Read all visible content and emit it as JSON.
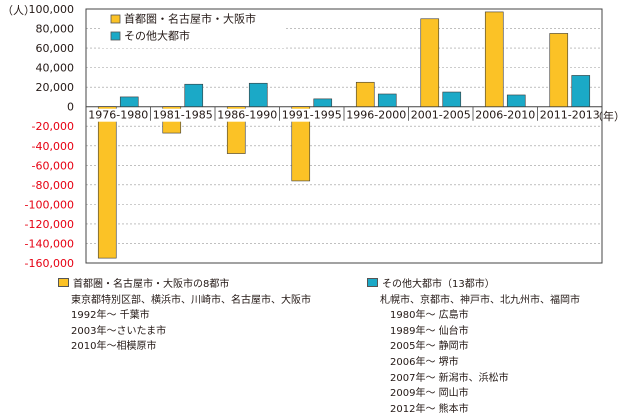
{
  "chart_data": {
    "type": "bar",
    "ylabel": "（人）",
    "xlabel": "（年）",
    "ylim": [
      -160000,
      100000
    ],
    "ytick_step": 20000,
    "yticks": [
      "100,000",
      "80,000",
      "60,000",
      "40,000",
      "20,000",
      "0",
      "-20,000",
      "-40,000",
      "-60,000",
      "-80,000",
      "-100,000",
      "-120,000",
      "-140,000",
      "-160,000"
    ],
    "grid": true,
    "legend_position": "top-left",
    "categories": [
      "1976-1980",
      "1981-1985",
      "1986-1990",
      "1991-1995",
      "1996-2000",
      "2001-2005",
      "2006-2010",
      "2011-2013"
    ],
    "series": [
      {
        "name": "首都圏・名古屋市・大阪市",
        "color": "#fbc226",
        "values": [
          -155000,
          -27000,
          -48000,
          -76000,
          25000,
          90000,
          97000,
          75000
        ]
      },
      {
        "name": "その他大都市",
        "color": "#1ba9c7",
        "values": [
          10000,
          23000,
          24000,
          8000,
          13000,
          15000,
          12000,
          32000
        ]
      }
    ],
    "negative_tick_color": "#e60012"
  },
  "notes": {
    "left_title": "首都圏・名古屋市・大阪市の8都市",
    "left_lines": [
      "東京都特別区部、横浜市、川崎市、名古屋市、大阪市",
      "1992年～ 千葉市",
      "2003年～さいたま市",
      "2010年～相模原市"
    ],
    "right_title": "その他大都市（13都市）",
    "right_lines": [
      "札幌市、京都市、神戸市、北九州市、福岡市"
    ],
    "right_sub_lines": [
      "1980年～ 広島市",
      "1989年～ 仙台市",
      "2005年～ 静岡市",
      "2006年～ 堺市",
      "2007年～ 新潟市、浜松市",
      "2009年～ 岡山市",
      "2012年～ 熊本市"
    ]
  }
}
